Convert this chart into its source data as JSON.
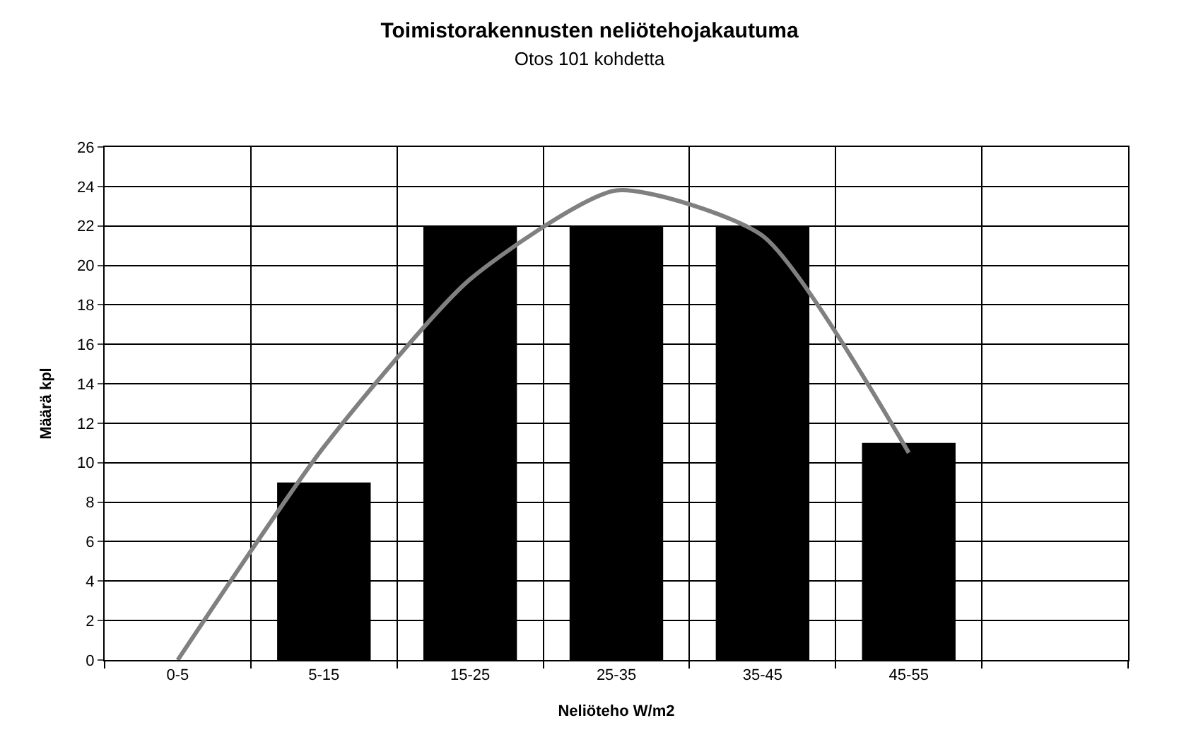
{
  "chart_data": {
    "type": "bar",
    "title": "Toimistorakennusten neliötehojakautuma",
    "subtitle": "Otos 101 kohdetta",
    "xlabel": "Neliöteho W/m2",
    "ylabel": "Määrä kpl",
    "categories": [
      "0-5",
      "5-15",
      "15-25",
      "25-35",
      "35-45",
      "45-55",
      null
    ],
    "series": [
      {
        "color": "#000000",
        "values": [
          0,
          9,
          22,
          22,
          22,
          11,
          null
        ]
      },
      {
        "type": "line",
        "color": "#808080",
        "values": [
          0,
          10.8,
          19.3,
          23.8,
          21.5,
          10.5,
          null
        ]
      }
    ],
    "ylim": [
      0,
      26
    ],
    "yticks": [
      0,
      2,
      4,
      6,
      8,
      10,
      12,
      14,
      16,
      18,
      20,
      22,
      24,
      26
    ],
    "grid": true,
    "line_style": "solid",
    "marker": "none"
  }
}
